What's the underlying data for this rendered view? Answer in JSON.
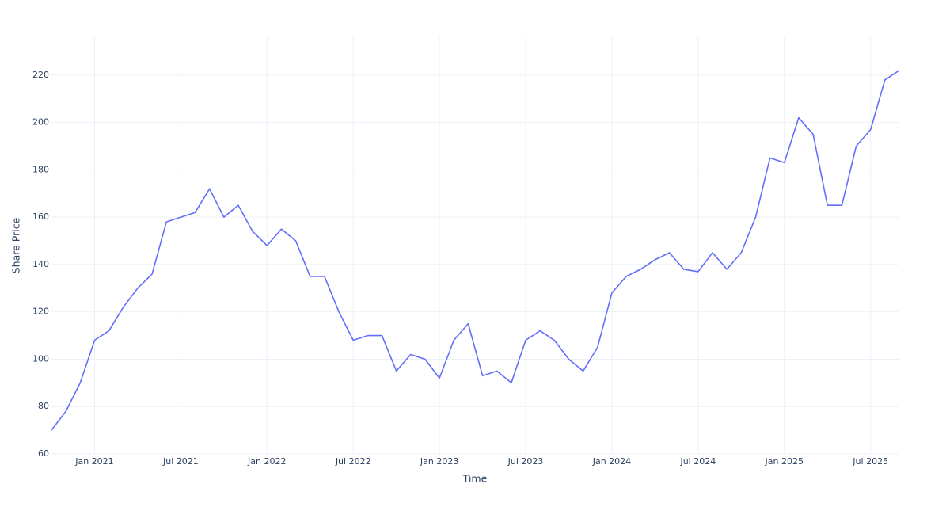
{
  "chart_data": {
    "type": "line",
    "x_label": "Time",
    "y_label": "Share Price",
    "x": [
      "2020-10",
      "2020-11",
      "2020-12",
      "2021-01",
      "2021-02",
      "2021-03",
      "2021-04",
      "2021-05",
      "2021-06",
      "2021-07",
      "2021-08",
      "2021-09",
      "2021-10",
      "2021-11",
      "2021-12",
      "2022-01",
      "2022-02",
      "2022-03",
      "2022-04",
      "2022-05",
      "2022-06",
      "2022-07",
      "2022-08",
      "2022-09",
      "2022-10",
      "2022-11",
      "2022-12",
      "2023-01",
      "2023-02",
      "2023-03",
      "2023-04",
      "2023-05",
      "2023-06",
      "2023-07",
      "2023-08",
      "2023-09",
      "2023-10",
      "2023-11",
      "2023-12",
      "2024-01",
      "2024-02",
      "2024-03",
      "2024-04",
      "2024-05",
      "2024-06",
      "2024-07",
      "2024-08",
      "2024-09",
      "2024-10",
      "2024-11",
      "2024-12",
      "2025-01",
      "2025-02",
      "2025-03",
      "2025-04",
      "2025-05",
      "2025-06",
      "2025-07",
      "2025-08",
      "2025-09"
    ],
    "series": [
      {
        "color": "#636efa",
        "values": [
          70,
          78,
          90,
          108,
          112,
          122,
          130,
          136,
          158,
          160,
          162,
          172,
          160,
          165,
          154,
          148,
          155,
          150,
          135,
          135,
          120,
          108,
          110,
          110,
          95,
          102,
          100,
          92,
          108,
          115,
          93,
          95,
          90,
          108,
          112,
          108,
          100,
          95,
          105,
          128,
          135,
          138,
          142,
          145,
          138,
          137,
          145,
          138,
          145,
          160,
          185,
          183,
          202,
          195,
          165,
          165,
          190,
          197,
          218,
          222
        ]
      }
    ],
    "xlim": [
      "2020-10",
      "2025-09"
    ],
    "xticks": [
      {
        "value": "2021-01",
        "label": "Jan 2021"
      },
      {
        "value": "2021-07",
        "label": "Jul 2021"
      },
      {
        "value": "2022-01",
        "label": "Jan 2022"
      },
      {
        "value": "2022-07",
        "label": "Jul 2022"
      },
      {
        "value": "2023-01",
        "label": "Jan 2023"
      },
      {
        "value": "2023-07",
        "label": "Jul 2023"
      },
      {
        "value": "2024-01",
        "label": "Jan 2024"
      },
      {
        "value": "2024-07",
        "label": "Jul 2024"
      },
      {
        "value": "2025-01",
        "label": "Jan 2025"
      },
      {
        "value": "2025-07",
        "label": "Jul 2025"
      }
    ],
    "ylim": [
      60,
      236
    ],
    "yticks": [
      60,
      80,
      100,
      120,
      140,
      160,
      180,
      200,
      220
    ],
    "grid": true
  }
}
